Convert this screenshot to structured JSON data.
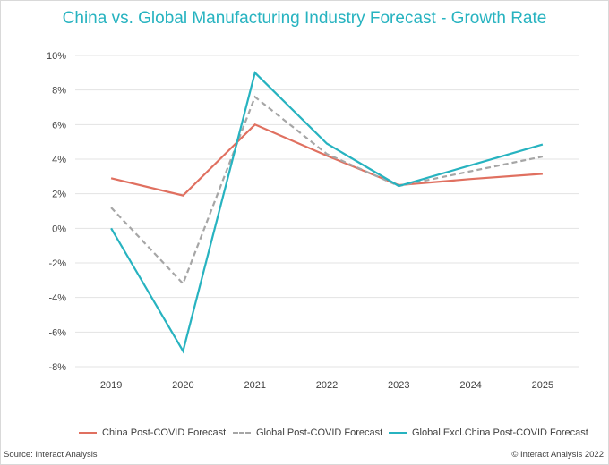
{
  "chart_data": {
    "type": "line",
    "title": "China vs. Global Manufacturing Industry Forecast - Growth Rate",
    "categories": [
      "2019",
      "2020",
      "2021",
      "2022",
      "2023",
      "2024",
      "2025"
    ],
    "ylim": [
      -8,
      10
    ],
    "yticks": [
      "10%",
      "8%",
      "6%",
      "4%",
      "2%",
      "0%",
      "-2%",
      "-4%",
      "-6%",
      "-8%"
    ],
    "ytick_values": [
      10,
      8,
      6,
      4,
      2,
      0,
      -2,
      -4,
      -6,
      -8
    ],
    "grid": true,
    "legend_position": "bottom",
    "series": [
      {
        "name": "China Post-COVID Forecast",
        "color": "#e07060",
        "style": "solid",
        "values": [
          2.9,
          1.9,
          6.0,
          4.2,
          2.5,
          2.85,
          3.15
        ]
      },
      {
        "name": "Global Post-COVID Forecast",
        "color": "#a6a6a6",
        "style": "dashed",
        "values": [
          1.2,
          -3.2,
          7.6,
          4.3,
          2.45,
          3.3,
          4.15
        ]
      },
      {
        "name": "Global Excl.China Post-COVID Forecast",
        "color": "#27b3c0",
        "style": "solid",
        "values": [
          0.0,
          -7.1,
          9.0,
          4.9,
          2.45,
          3.65,
          4.85
        ]
      }
    ]
  },
  "footer": {
    "source": "Source: Interact Analysis",
    "copyright": "© Interact Analysis 2022"
  }
}
